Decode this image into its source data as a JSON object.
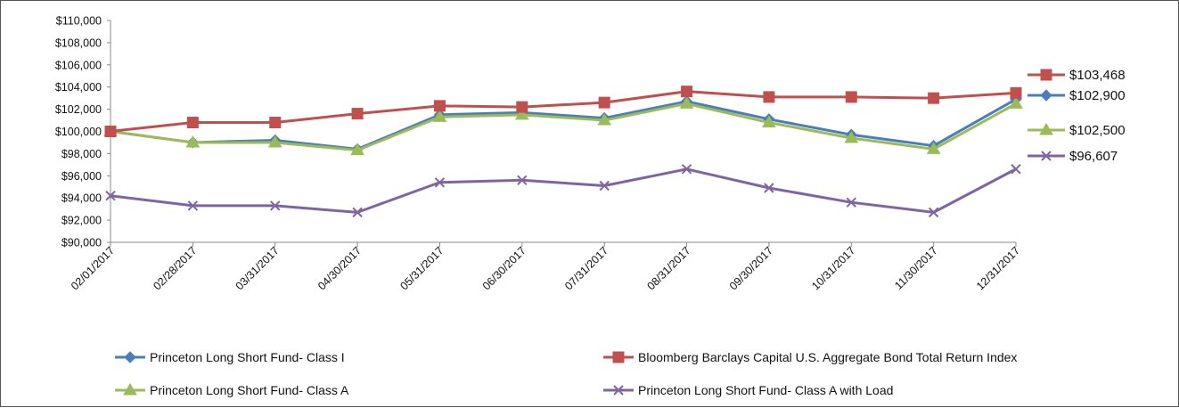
{
  "chart_data": {
    "type": "line",
    "title": "",
    "xlabel": "",
    "ylabel": "",
    "ylim": [
      90000,
      110000
    ],
    "ytick_step": 2000,
    "grid": false,
    "legend_position": "bottom",
    "categories": [
      "02/01/2017",
      "02/28/2017",
      "03/31/2017",
      "04/30/2017",
      "05/31/2017",
      "06/30/2017",
      "07/31/2017",
      "08/31/2017",
      "09/30/2017",
      "10/31/2017",
      "11/30/2017",
      "12/31/2017"
    ],
    "y_tick_labels": [
      "$90,000",
      "$92,000",
      "$94,000",
      "$96,000",
      "$98,000",
      "$100,000",
      "$102,000",
      "$104,000",
      "$106,000",
      "$108,000",
      "$110,000"
    ],
    "series": [
      {
        "name": "Princeton Long Short Fund- Class I",
        "color": "#4a7ebb",
        "marker": "diamond",
        "values": [
          100000,
          99000,
          99200,
          98400,
          101500,
          101700,
          101200,
          102700,
          101100,
          99700,
          98700,
          102900
        ],
        "end_label": "$102,900"
      },
      {
        "name": "Bloomberg Barclays Capital U.S. Aggregate Bond Total Return Index",
        "color": "#c0504d",
        "marker": "square",
        "values": [
          100000,
          100800,
          100800,
          101600,
          102300,
          102200,
          102600,
          103600,
          103100,
          103100,
          103000,
          103468
        ],
        "end_label": "$103,468"
      },
      {
        "name": "Princeton Long Short Fund- Class A",
        "color": "#9bbb59",
        "marker": "triangle",
        "values": [
          100000,
          99000,
          99000,
          98300,
          101300,
          101500,
          101000,
          102500,
          100800,
          99400,
          98400,
          102500
        ],
        "end_label": "$102,500"
      },
      {
        "name": "Princeton Long Short Fund- Class A with Load",
        "color": "#8064a2",
        "marker": "x",
        "values": [
          94200,
          93300,
          93300,
          92700,
          95400,
          95600,
          95100,
          96600,
          94900,
          93600,
          92700,
          96607
        ],
        "end_label": "$96,607"
      }
    ],
    "end_labels_order": [
      1,
      0,
      2,
      3
    ]
  }
}
